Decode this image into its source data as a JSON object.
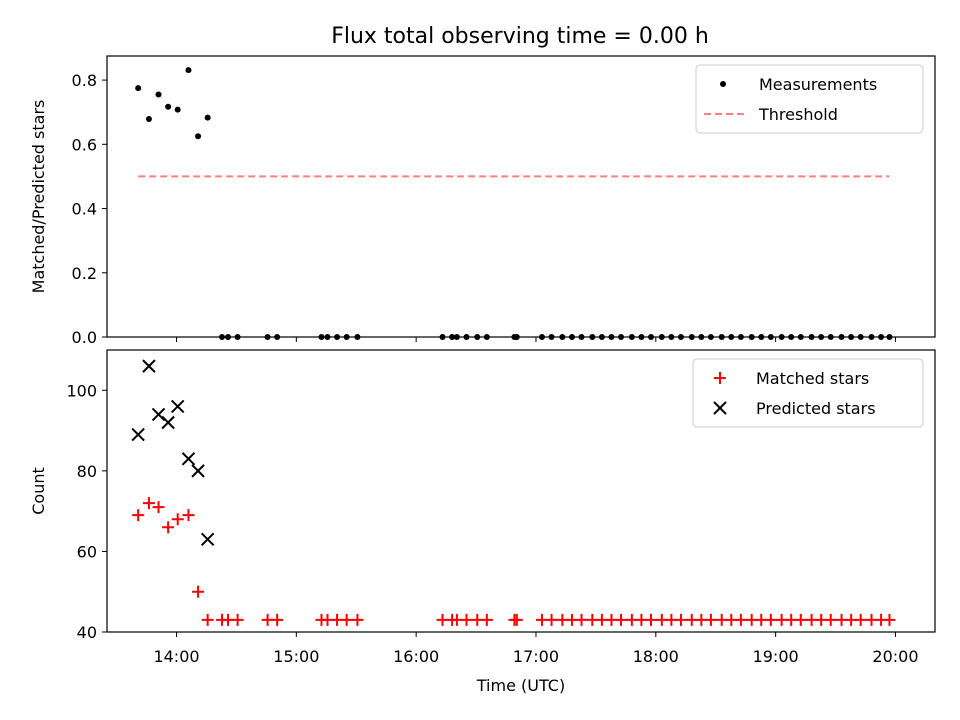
{
  "figure_title": "Flux total observing time = 0.00 h",
  "chart_data": [
    {
      "type": "scatter",
      "ylabel": "Matched/Predicted stars",
      "xlabel": "",
      "xlim": [
        13.42,
        20.33
      ],
      "ylim": [
        0,
        0.875
      ],
      "yticks": [
        0.0,
        0.2,
        0.4,
        0.6,
        0.8
      ],
      "ytick_labels": [
        "0.0",
        "0.2",
        "0.4",
        "0.6",
        "0.8"
      ],
      "xticks": [
        14,
        15,
        16,
        17,
        18,
        19,
        20
      ],
      "legend": {
        "placement": "top-right"
      },
      "series": [
        {
          "name": "Measurements",
          "marker": "dot",
          "color": "#000000",
          "x": [
            13.68,
            13.77,
            13.85,
            13.93,
            14.01,
            14.1,
            14.18,
            14.26,
            14.38,
            14.43,
            14.51,
            14.76,
            14.84,
            15.21,
            15.26,
            15.34,
            15.42,
            15.51,
            16.22,
            16.3,
            16.34,
            16.42,
            16.51,
            16.59,
            16.82,
            16.84,
            17.05,
            17.13,
            17.22,
            17.3,
            17.38,
            17.47,
            17.55,
            17.63,
            17.71,
            17.8,
            17.88,
            17.96,
            18.05,
            18.13,
            18.21,
            18.3,
            18.38,
            18.46,
            18.55,
            18.63,
            18.71,
            18.8,
            18.88,
            18.96,
            19.05,
            19.13,
            19.21,
            19.3,
            19.38,
            19.46,
            19.55,
            19.63,
            19.71,
            19.8,
            19.88,
            19.95
          ],
          "y": [
            0.775,
            0.679,
            0.755,
            0.717,
            0.708,
            0.831,
            0.625,
            0.683,
            0,
            0,
            0,
            0,
            0,
            0,
            0,
            0,
            0,
            0,
            0,
            0,
            0,
            0,
            0,
            0,
            0,
            0,
            0,
            0,
            0,
            0,
            0,
            0,
            0,
            0,
            0,
            0,
            0,
            0,
            0,
            0,
            0,
            0,
            0,
            0,
            0,
            0,
            0,
            0,
            0,
            0,
            0,
            0,
            0,
            0,
            0,
            0,
            0,
            0,
            0,
            0,
            0,
            0
          ]
        },
        {
          "name": "Threshold",
          "style": "dashed",
          "color": "#ff7f7f",
          "x": [
            13.68,
            19.95
          ],
          "y": [
            0.5,
            0.5
          ]
        }
      ]
    },
    {
      "type": "scatter",
      "ylabel": "Count",
      "xlabel": "Time (UTC)",
      "xlim": [
        13.42,
        20.33
      ],
      "ylim": [
        40,
        110
      ],
      "yticks": [
        40,
        60,
        80,
        100
      ],
      "ytick_labels": [
        "40",
        "60",
        "80",
        "100"
      ],
      "xticks": [
        14,
        15,
        16,
        17,
        18,
        19,
        20
      ],
      "xtick_labels": [
        "14:00",
        "15:00",
        "16:00",
        "17:00",
        "18:00",
        "19:00",
        "20:00"
      ],
      "legend": {
        "placement": "top-right"
      },
      "series": [
        {
          "name": "Matched stars",
          "marker": "plus",
          "color": "#ff0000",
          "x": [
            13.68,
            13.77,
            13.85,
            13.93,
            14.01,
            14.1,
            14.18,
            14.26,
            14.38,
            14.43,
            14.51,
            14.76,
            14.84,
            15.21,
            15.26,
            15.34,
            15.42,
            15.51,
            16.22,
            16.3,
            16.34,
            16.42,
            16.51,
            16.59,
            16.82,
            16.84,
            17.05,
            17.13,
            17.22,
            17.3,
            17.38,
            17.47,
            17.55,
            17.63,
            17.71,
            17.8,
            17.88,
            17.96,
            18.05,
            18.13,
            18.21,
            18.3,
            18.38,
            18.46,
            18.55,
            18.63,
            18.71,
            18.8,
            18.88,
            18.96,
            19.05,
            19.13,
            19.21,
            19.3,
            19.38,
            19.46,
            19.55,
            19.63,
            19.71,
            19.8,
            19.88,
            19.95
          ],
          "y": [
            69,
            72,
            71,
            66,
            68,
            69,
            50,
            43,
            43,
            43,
            43,
            43,
            43,
            43,
            43,
            43,
            43,
            43,
            43,
            43,
            43,
            43,
            43,
            43,
            43,
            43,
            43,
            43,
            43,
            43,
            43,
            43,
            43,
            43,
            43,
            43,
            43,
            43,
            43,
            43,
            43,
            43,
            43,
            43,
            43,
            43,
            43,
            43,
            43,
            43,
            43,
            43,
            43,
            43,
            43,
            43,
            43,
            43,
            43,
            43,
            43,
            43
          ]
        },
        {
          "name": "Predicted stars",
          "marker": "x",
          "color": "#000000",
          "x": [
            13.68,
            13.77,
            13.85,
            13.93,
            14.01,
            14.1,
            14.18,
            14.26
          ],
          "y": [
            89,
            106,
            94,
            92,
            96,
            83,
            80,
            63
          ]
        }
      ]
    }
  ]
}
